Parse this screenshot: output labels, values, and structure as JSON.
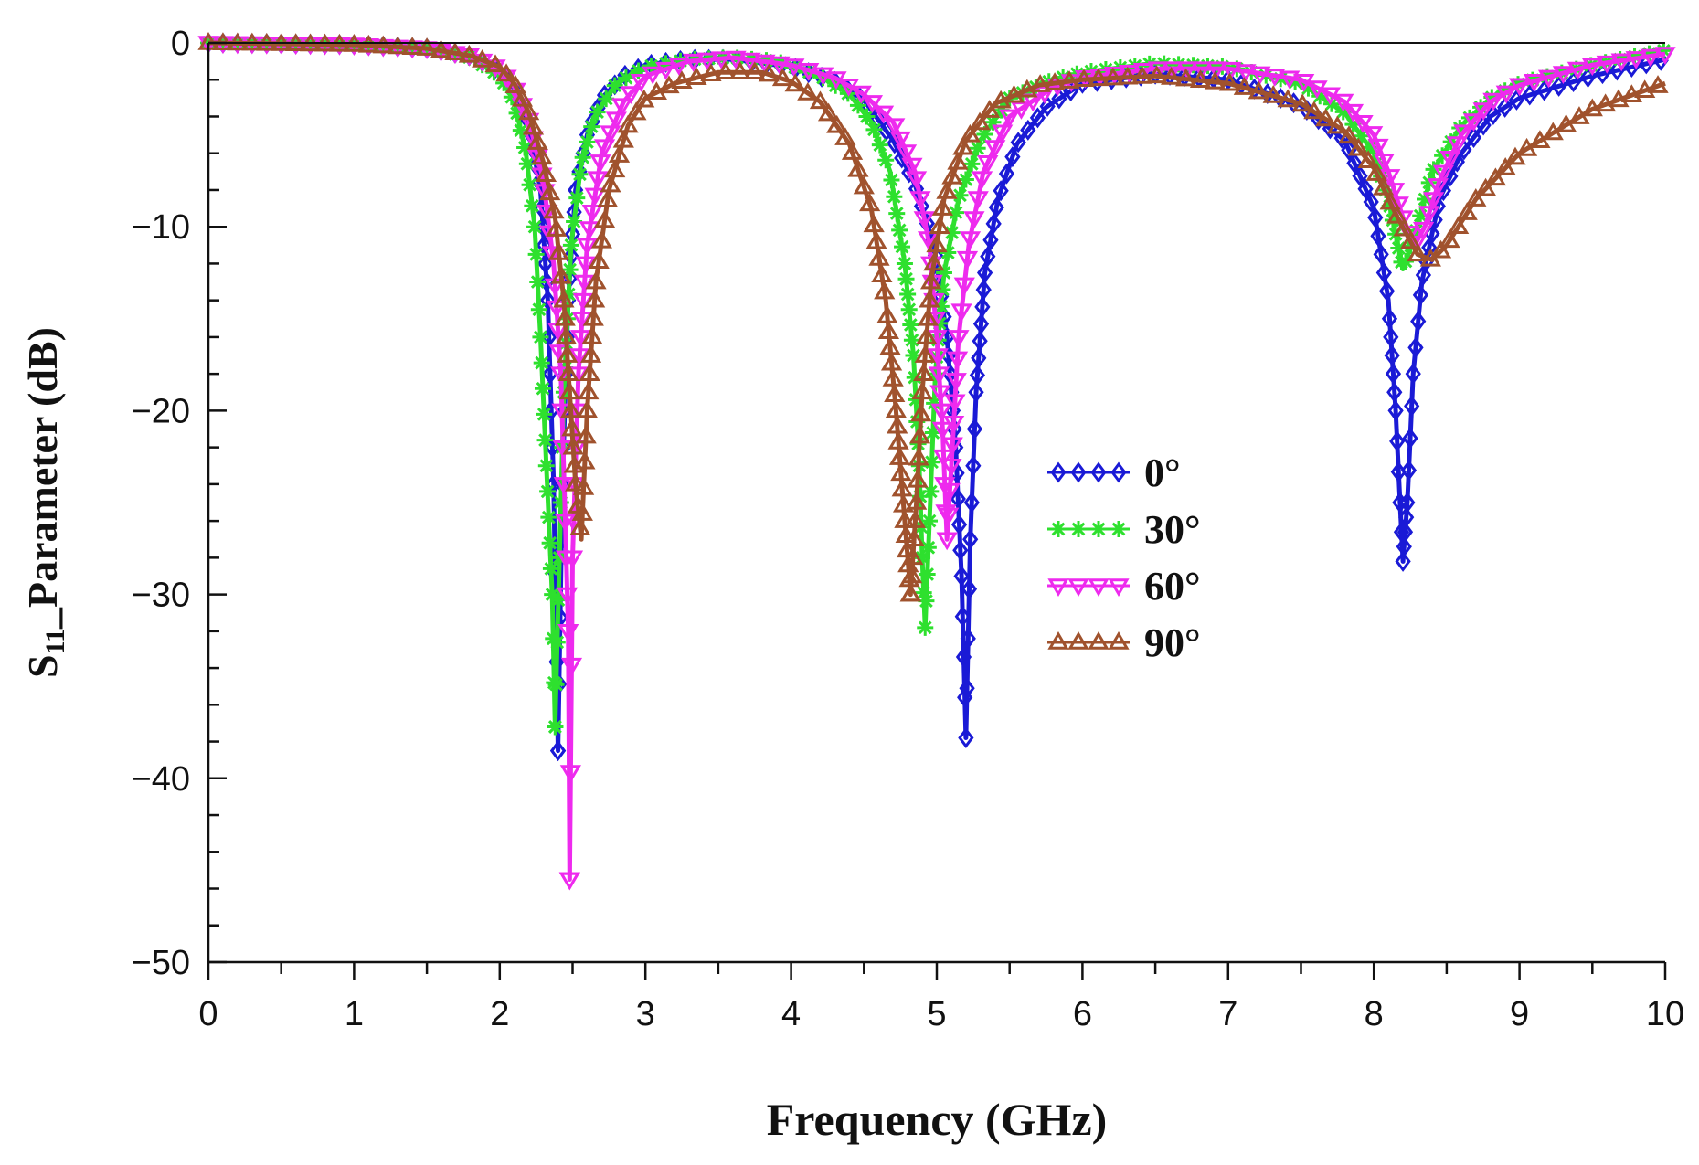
{
  "chart_data": {
    "type": "line",
    "title": "",
    "xlabel": "Frequency (GHz)",
    "ylabel": {
      "prefix": "S",
      "subscript": "11",
      "suffix": "_Parameter (dB)"
    },
    "xlim": [
      0,
      10
    ],
    "ylim": [
      -50,
      0
    ],
    "xticks": [
      0,
      1,
      2,
      3,
      4,
      5,
      6,
      7,
      8,
      9,
      10
    ],
    "xtick_labels": [
      "0",
      "1",
      "2",
      "3",
      "4",
      "5",
      "6",
      "7",
      "8",
      "9",
      "10"
    ],
    "yticks": [
      0,
      -10,
      -20,
      -30,
      -40,
      -50
    ],
    "ytick_labels": [
      "0",
      "−10",
      "−20",
      "−30",
      "−40",
      "−50"
    ],
    "x_minor_step": 0.5,
    "y_minor_step": 2,
    "grid": false,
    "legend_position": "center-right",
    "series": [
      {
        "name": "0°",
        "color": "#1a1ad6",
        "marker": "diamond",
        "points": [
          [
            0,
            0
          ],
          [
            1,
            -0.1
          ],
          [
            1.5,
            -0.3
          ],
          [
            1.8,
            -0.7
          ],
          [
            2.0,
            -1.5
          ],
          [
            2.1,
            -2.6
          ],
          [
            2.2,
            -4.5
          ],
          [
            2.28,
            -8
          ],
          [
            2.33,
            -14
          ],
          [
            2.37,
            -24
          ],
          [
            2.4,
            -38.5
          ],
          [
            2.43,
            -24
          ],
          [
            2.47,
            -14
          ],
          [
            2.52,
            -8
          ],
          [
            2.6,
            -5
          ],
          [
            2.7,
            -3
          ],
          [
            2.85,
            -1.8
          ],
          [
            3.0,
            -1.2
          ],
          [
            3.3,
            -0.9
          ],
          [
            3.6,
            -0.9
          ],
          [
            4.0,
            -1.3
          ],
          [
            4.3,
            -2.1
          ],
          [
            4.5,
            -3.1
          ],
          [
            4.7,
            -5.3
          ],
          [
            4.85,
            -7.7
          ],
          [
            4.98,
            -11
          ],
          [
            5.07,
            -16
          ],
          [
            5.13,
            -22
          ],
          [
            5.17,
            -29
          ],
          [
            5.2,
            -37.8
          ],
          [
            5.23,
            -27
          ],
          [
            5.27,
            -19
          ],
          [
            5.33,
            -12.5
          ],
          [
            5.42,
            -8.5
          ],
          [
            5.55,
            -5.5
          ],
          [
            5.75,
            -3.5
          ],
          [
            6.0,
            -2.2
          ],
          [
            6.5,
            -1.7
          ],
          [
            7.0,
            -2.0
          ],
          [
            7.5,
            -3.4
          ],
          [
            7.8,
            -5.3
          ],
          [
            8.0,
            -9
          ],
          [
            8.1,
            -14
          ],
          [
            8.15,
            -20
          ],
          [
            8.18,
            -25
          ],
          [
            8.2,
            -28.2
          ],
          [
            8.23,
            -25
          ],
          [
            8.27,
            -18
          ],
          [
            8.33,
            -13
          ],
          [
            8.45,
            -8.5
          ],
          [
            8.6,
            -6
          ],
          [
            8.8,
            -4
          ],
          [
            9.0,
            -3
          ],
          [
            9.5,
            -1.8
          ],
          [
            10.0,
            -0.9
          ]
        ]
      },
      {
        "name": "30°",
        "color": "#2ee02e",
        "marker": "star",
        "points": [
          [
            0,
            0
          ],
          [
            1,
            -0.1
          ],
          [
            1.5,
            -0.3
          ],
          [
            1.8,
            -0.8
          ],
          [
            2.0,
            -1.8
          ],
          [
            2.1,
            -3.2
          ],
          [
            2.18,
            -6
          ],
          [
            2.24,
            -10
          ],
          [
            2.28,
            -16
          ],
          [
            2.32,
            -23
          ],
          [
            2.36,
            -30
          ],
          [
            2.38,
            -37.2
          ],
          [
            2.41,
            -28
          ],
          [
            2.44,
            -19
          ],
          [
            2.49,
            -11
          ],
          [
            2.56,
            -6.5
          ],
          [
            2.65,
            -4
          ],
          [
            2.8,
            -2.2
          ],
          [
            3.0,
            -1.3
          ],
          [
            3.3,
            -0.9
          ],
          [
            3.6,
            -0.8
          ],
          [
            3.9,
            -1
          ],
          [
            4.2,
            -1.8
          ],
          [
            4.4,
            -2.8
          ],
          [
            4.55,
            -4.3
          ],
          [
            4.68,
            -7
          ],
          [
            4.78,
            -12
          ],
          [
            4.84,
            -17
          ],
          [
            4.88,
            -23
          ],
          [
            4.9,
            -28
          ],
          [
            4.92,
            -31.8
          ],
          [
            4.95,
            -26
          ],
          [
            4.99,
            -18
          ],
          [
            5.05,
            -12.5
          ],
          [
            5.15,
            -8.5
          ],
          [
            5.3,
            -5.3
          ],
          [
            5.5,
            -3
          ],
          [
            5.8,
            -2
          ],
          [
            6.0,
            -1.6
          ],
          [
            6.5,
            -1.1
          ],
          [
            7.0,
            -1.3
          ],
          [
            7.5,
            -2.2
          ],
          [
            7.8,
            -3.8
          ],
          [
            8.0,
            -6
          ],
          [
            8.1,
            -8.5
          ],
          [
            8.2,
            -12.3
          ],
          [
            8.3,
            -10
          ],
          [
            8.4,
            -7
          ],
          [
            8.6,
            -4.5
          ],
          [
            8.8,
            -3
          ],
          [
            9.0,
            -2.2
          ],
          [
            9.5,
            -1.2
          ],
          [
            10.0,
            -0.4
          ]
        ]
      },
      {
        "name": "60°",
        "color": "#ee2aee",
        "marker": "triangle-down",
        "points": [
          [
            0,
            0
          ],
          [
            1,
            -0.1
          ],
          [
            1.5,
            -0.3
          ],
          [
            1.8,
            -0.7
          ],
          [
            2.0,
            -1.4
          ],
          [
            2.1,
            -2.4
          ],
          [
            2.2,
            -4.2
          ],
          [
            2.3,
            -7.5
          ],
          [
            2.37,
            -12
          ],
          [
            2.42,
            -18
          ],
          [
            2.45,
            -26
          ],
          [
            2.47,
            -32
          ],
          [
            2.48,
            -45.5
          ],
          [
            2.5,
            -28
          ],
          [
            2.54,
            -18
          ],
          [
            2.6,
            -11
          ],
          [
            2.7,
            -6
          ],
          [
            2.85,
            -3.2
          ],
          [
            3.0,
            -1.8
          ],
          [
            3.3,
            -1
          ],
          [
            3.6,
            -0.8
          ],
          [
            4.0,
            -1.2
          ],
          [
            4.3,
            -1.9
          ],
          [
            4.5,
            -2.8
          ],
          [
            4.7,
            -4.3
          ],
          [
            4.85,
            -7
          ],
          [
            4.95,
            -11
          ],
          [
            5.0,
            -16
          ],
          [
            5.04,
            -21
          ],
          [
            5.07,
            -27
          ],
          [
            5.1,
            -23
          ],
          [
            5.15,
            -16
          ],
          [
            5.22,
            -11
          ],
          [
            5.32,
            -7
          ],
          [
            5.5,
            -4
          ],
          [
            5.8,
            -2.4
          ],
          [
            6.0,
            -1.9
          ],
          [
            6.5,
            -1.4
          ],
          [
            7.0,
            -1.4
          ],
          [
            7.5,
            -2
          ],
          [
            7.8,
            -3.2
          ],
          [
            8.0,
            -5
          ],
          [
            8.1,
            -7
          ],
          [
            8.2,
            -9.5
          ],
          [
            8.28,
            -11
          ],
          [
            8.35,
            -10
          ],
          [
            8.45,
            -7.5
          ],
          [
            8.6,
            -5
          ],
          [
            8.8,
            -3.2
          ],
          [
            9.0,
            -2.3
          ],
          [
            9.5,
            -1.2
          ],
          [
            10.0,
            -0.6
          ]
        ]
      },
      {
        "name": "90°",
        "color": "#a0522d",
        "marker": "triangle-up",
        "points": [
          [
            0,
            0
          ],
          [
            1,
            -0.1
          ],
          [
            1.5,
            -0.3
          ],
          [
            1.8,
            -0.7
          ],
          [
            2.0,
            -1.3
          ],
          [
            2.1,
            -2.2
          ],
          [
            2.2,
            -3.8
          ],
          [
            2.3,
            -6.5
          ],
          [
            2.38,
            -9.5
          ],
          [
            2.44,
            -14
          ],
          [
            2.48,
            -19
          ],
          [
            2.52,
            -24
          ],
          [
            2.56,
            -27
          ],
          [
            2.6,
            -20
          ],
          [
            2.66,
            -13
          ],
          [
            2.75,
            -8
          ],
          [
            2.88,
            -4.5
          ],
          [
            3.0,
            -3
          ],
          [
            3.2,
            -2.2
          ],
          [
            3.5,
            -1.6
          ],
          [
            3.8,
            -1.6
          ],
          [
            4.0,
            -2.1
          ],
          [
            4.2,
            -3.2
          ],
          [
            4.4,
            -5.5
          ],
          [
            4.55,
            -9
          ],
          [
            4.65,
            -14
          ],
          [
            4.72,
            -20
          ],
          [
            4.78,
            -26
          ],
          [
            4.82,
            -30
          ],
          [
            4.86,
            -25
          ],
          [
            4.9,
            -19
          ],
          [
            4.96,
            -13
          ],
          [
            5.05,
            -8.5
          ],
          [
            5.2,
            -5.3
          ],
          [
            5.4,
            -3.3
          ],
          [
            5.7,
            -2.3
          ],
          [
            6.0,
            -2
          ],
          [
            6.5,
            -1.8
          ],
          [
            7.0,
            -2.2
          ],
          [
            7.5,
            -3.3
          ],
          [
            7.8,
            -4.8
          ],
          [
            8.0,
            -6.8
          ],
          [
            8.15,
            -9.3
          ],
          [
            8.3,
            -11.5
          ],
          [
            8.4,
            -11.8
          ],
          [
            8.5,
            -11
          ],
          [
            8.7,
            -8.5
          ],
          [
            9.0,
            -6
          ],
          [
            9.5,
            -3.6
          ],
          [
            10.0,
            -2.2
          ]
        ]
      }
    ]
  }
}
